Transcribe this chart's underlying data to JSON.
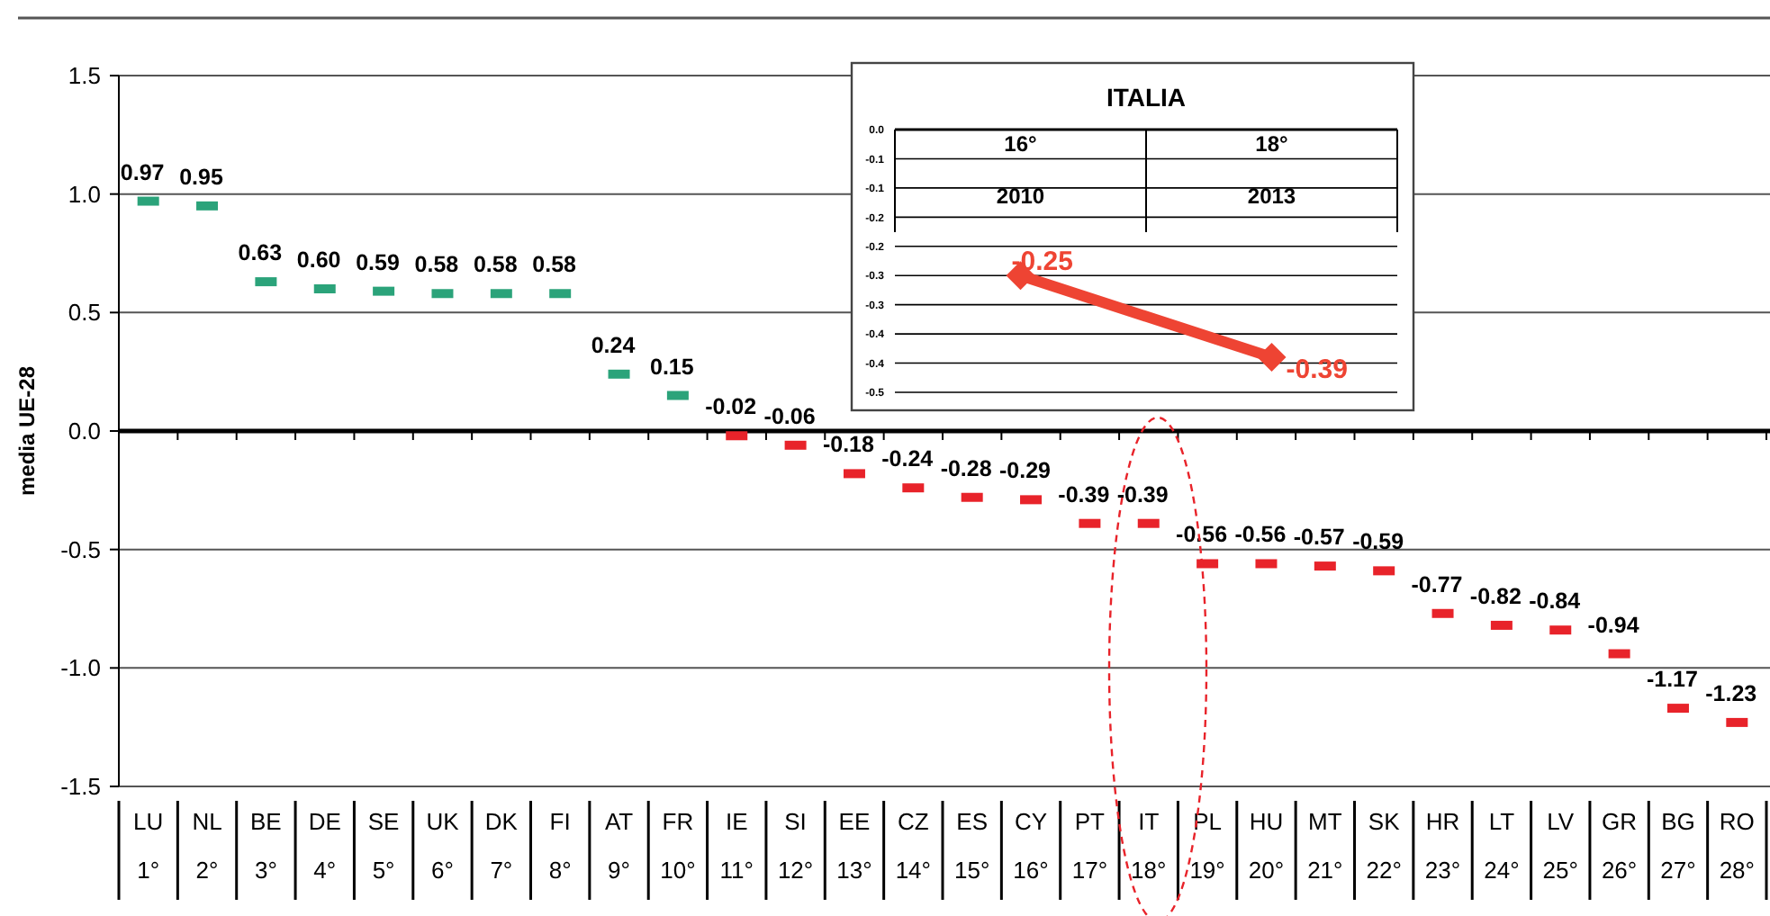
{
  "chart_data": [
    {
      "type": "scatter",
      "ylabel": "media UE-28",
      "categories": [
        "LU\n1°",
        "NL\n2°",
        "BE\n3°",
        "DE\n4°",
        "SE\n5°",
        "UK\n6°",
        "DK\n7°",
        "FI\n8°",
        "AT\n9°",
        "FR\n10°",
        "IE\n11°",
        "SI\n12°",
        "EE\n13°",
        "CZ\n14°",
        "ES\n15°",
        "CY\n16°",
        "PT\n17°",
        "IT\n18°",
        "PL\n19°",
        "HU\n20°",
        "MT\n21°",
        "SK\n22°",
        "HR\n23°",
        "LT\n24°",
        "LV\n25°",
        "GR\n26°",
        "BG\n27°",
        "RO\n28°"
      ],
      "values": [
        0.97,
        0.95,
        0.63,
        0.6,
        0.59,
        0.58,
        0.58,
        0.58,
        0.24,
        0.15,
        -0.02,
        -0.06,
        -0.18,
        -0.24,
        -0.28,
        -0.29,
        -0.39,
        -0.39,
        -0.56,
        -0.56,
        -0.57,
        -0.59,
        -0.77,
        -0.82,
        -0.84,
        -0.94,
        -1.17,
        -1.23
      ],
      "colors": [
        "#2ba37a",
        "#2ba37a",
        "#2ba37a",
        "#2ba37a",
        "#2ba37a",
        "#2ba37a",
        "#2ba37a",
        "#2ba37a",
        "#2ba37a",
        "#2ba37a",
        "#e8232a",
        "#e8232a",
        "#e8232a",
        "#e8232a",
        "#e8232a",
        "#e8232a",
        "#e8232a",
        "#e8232a",
        "#e8232a",
        "#e8232a",
        "#e8232a",
        "#e8232a",
        "#e8232a",
        "#e8232a",
        "#e8232a",
        "#e8232a",
        "#e8232a",
        "#e8232a"
      ],
      "value_labels": [
        "0.97",
        "0.95",
        "0.63",
        "0.60",
        "0.59",
        "0.58",
        "0.58",
        "0.58",
        "0.24",
        "0.15",
        "-0.02",
        "-0.06",
        "-0.18",
        "-0.24",
        "-0.28",
        "-0.29",
        "-0.39",
        "-0.39",
        "-0.56",
        "-0.56",
        "-0.57",
        "-0.59",
        "-0.77",
        "-0.82",
        "-0.84",
        "-0.94",
        "-1.17",
        "-1.23"
      ],
      "ylim": [
        -1.5,
        1.5
      ],
      "yticks": [
        {
          "value": -1.5,
          "label": "-1.5"
        },
        {
          "value": -1,
          "label": "-1.0"
        },
        {
          "value": -0.5,
          "label": "-0.5"
        },
        {
          "value": 0,
          "label": "0.0"
        },
        {
          "value": 0.5,
          "label": "0.5"
        },
        {
          "value": 1,
          "label": "1.0"
        },
        {
          "value": 1.5,
          "label": "1.5"
        }
      ],
      "grid": "y"
    },
    {
      "type": "line",
      "title": "ITALIA",
      "categories": [
        "16°\n2010",
        "18°\n2013"
      ],
      "series": [
        {
          "color": "#ee4433",
          "values": [
            -0.25,
            -0.39
          ],
          "value_labels": [
            "-0.25",
            "-0.39"
          ]
        }
      ],
      "marker": "diamond",
      "ylim": [
        -0.45,
        0
      ],
      "yticks": [
        {
          "value": -0.45,
          "label": "-0.5"
        },
        {
          "value": -0.4,
          "label": "-0.4"
        },
        {
          "value": -0.35,
          "label": "-0.4"
        },
        {
          "value": -0.3,
          "label": "-0.3"
        },
        {
          "value": -0.25,
          "label": "-0.3"
        },
        {
          "value": -0.2,
          "label": "-0.2"
        },
        {
          "value": -0.15,
          "label": "-0.2"
        },
        {
          "value": -0.1,
          "label": "-0.1"
        },
        {
          "value": -0.05,
          "label": "-0.1"
        },
        {
          "value": 0,
          "label": "0.0"
        }
      ],
      "grid": "y"
    }
  ]
}
